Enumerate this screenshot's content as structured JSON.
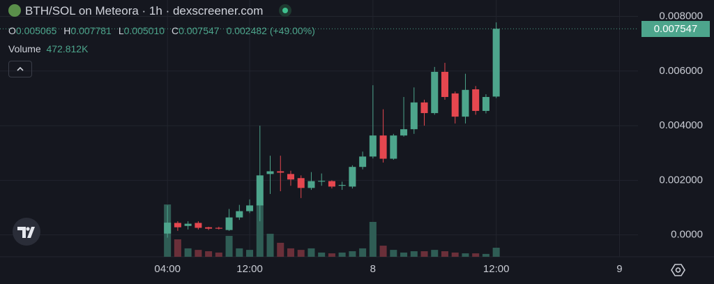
{
  "chart_data": {
    "type": "candlestick",
    "title": "BTH/SOL on Meteora · 1h · dexscreener.com",
    "ohlc_legend": [
      {
        "key": "O",
        "value": "0.005065"
      },
      {
        "key": "H",
        "value": "0.007781"
      },
      {
        "key": "L",
        "value": "0.005010"
      },
      {
        "key": "C",
        "value": "0.007547"
      }
    ],
    "change_label": "0.002482 (+49.00%)",
    "volume_label": "Volume",
    "volume_value_label": "472.812K",
    "last_price_label": "0.007547",
    "x": [
      4,
      5,
      6,
      7,
      8,
      9,
      10,
      11,
      12,
      13,
      14,
      15,
      16,
      17,
      18,
      19,
      20,
      21,
      22,
      23,
      24,
      25,
      26,
      27,
      28,
      29,
      30,
      31,
      32,
      33,
      34,
      35,
      36
    ],
    "open": [
      5e-05,
      0.00044,
      0.00033,
      0.00044,
      0.00028,
      0.00026,
      0.00018,
      0.00064,
      0.00087,
      0.00108,
      0.00223,
      0.00233,
      0.00223,
      0.00208,
      0.00172,
      0.00195,
      0.00197,
      0.0018,
      0.00177,
      0.00249,
      0.00287,
      0.00364,
      0.00279,
      0.00364,
      0.00387,
      0.00485,
      0.00446,
      0.00597,
      0.00518,
      0.00433,
      0.00533,
      0.00454,
      0.005065
    ],
    "high": [
      0.00108,
      0.0005,
      0.0005,
      0.0005,
      0.0003,
      0.0003,
      0.00095,
      0.0011,
      0.0013,
      0.004,
      0.0029,
      0.0029,
      0.00235,
      0.00218,
      0.0023,
      0.00225,
      0.002,
      0.00195,
      0.00255,
      0.00305,
      0.00548,
      0.0046,
      0.0037,
      0.00505,
      0.0054,
      0.00495,
      0.00615,
      0.0063,
      0.00525,
      0.0059,
      0.00545,
      0.00515,
      0.007781
    ],
    "low": [
      -0.0001,
      0.00015,
      0.0002,
      0.0002,
      0.00018,
      0.0002,
      0.00015,
      0.00055,
      0.0008,
      0.0005,
      0.0015,
      0.0016,
      0.0018,
      0.00135,
      0.00165,
      0.0018,
      0.0017,
      0.00165,
      0.0017,
      0.0024,
      0.0028,
      0.00265,
      0.00275,
      0.0036,
      0.0037,
      0.004,
      0.0044,
      0.00495,
      0.00408,
      0.00408,
      0.0044,
      0.00445,
      0.00501
    ],
    "close": [
      0.00045,
      0.00028,
      0.00041,
      0.00026,
      0.00023,
      0.00023,
      0.00064,
      0.00087,
      0.00108,
      0.00218,
      0.00233,
      0.00228,
      0.00203,
      0.00172,
      0.00197,
      0.00198,
      0.00177,
      0.00183,
      0.00249,
      0.00287,
      0.00364,
      0.00279,
      0.00364,
      0.00387,
      0.00485,
      0.00446,
      0.00597,
      0.00505,
      0.00433,
      0.00531,
      0.00454,
      0.00505,
      0.007547
    ],
    "volume": [
      2730000,
      910000,
      440000,
      360000,
      290000,
      220000,
      1090000,
      440000,
      360000,
      2730000,
      1200000,
      730000,
      440000,
      360000,
      440000,
      220000,
      180000,
      220000,
      290000,
      440000,
      1820000,
      580000,
      360000,
      220000,
      290000,
      290000,
      360000,
      290000,
      220000,
      180000,
      180000,
      150000,
      472812
    ],
    "up_color": "#4da58c",
    "down_color": "#e5474f",
    "volume_up_color": "#2f5d55",
    "volume_down_color": "#6a2f39",
    "xlim": [
      -12.3,
      49.8
    ],
    "xticks": [
      {
        "value": 4,
        "label": "04:00"
      },
      {
        "value": 12,
        "label": "12:00"
      },
      {
        "value": 24,
        "label": "8"
      },
      {
        "value": 36,
        "label": "12:00"
      },
      {
        "value": 48,
        "label": "9"
      }
    ],
    "ylim": [
      -0.0008,
      0.0086
    ],
    "yticks": [
      {
        "value": 0,
        "label": "0.0000"
      },
      {
        "value": 0.002,
        "label": "0.002000"
      },
      {
        "value": 0.004,
        "label": "0.004000"
      },
      {
        "value": 0.006,
        "label": "0.006000"
      },
      {
        "value": 0.008,
        "label": "0.008000"
      }
    ],
    "grid": true
  }
}
